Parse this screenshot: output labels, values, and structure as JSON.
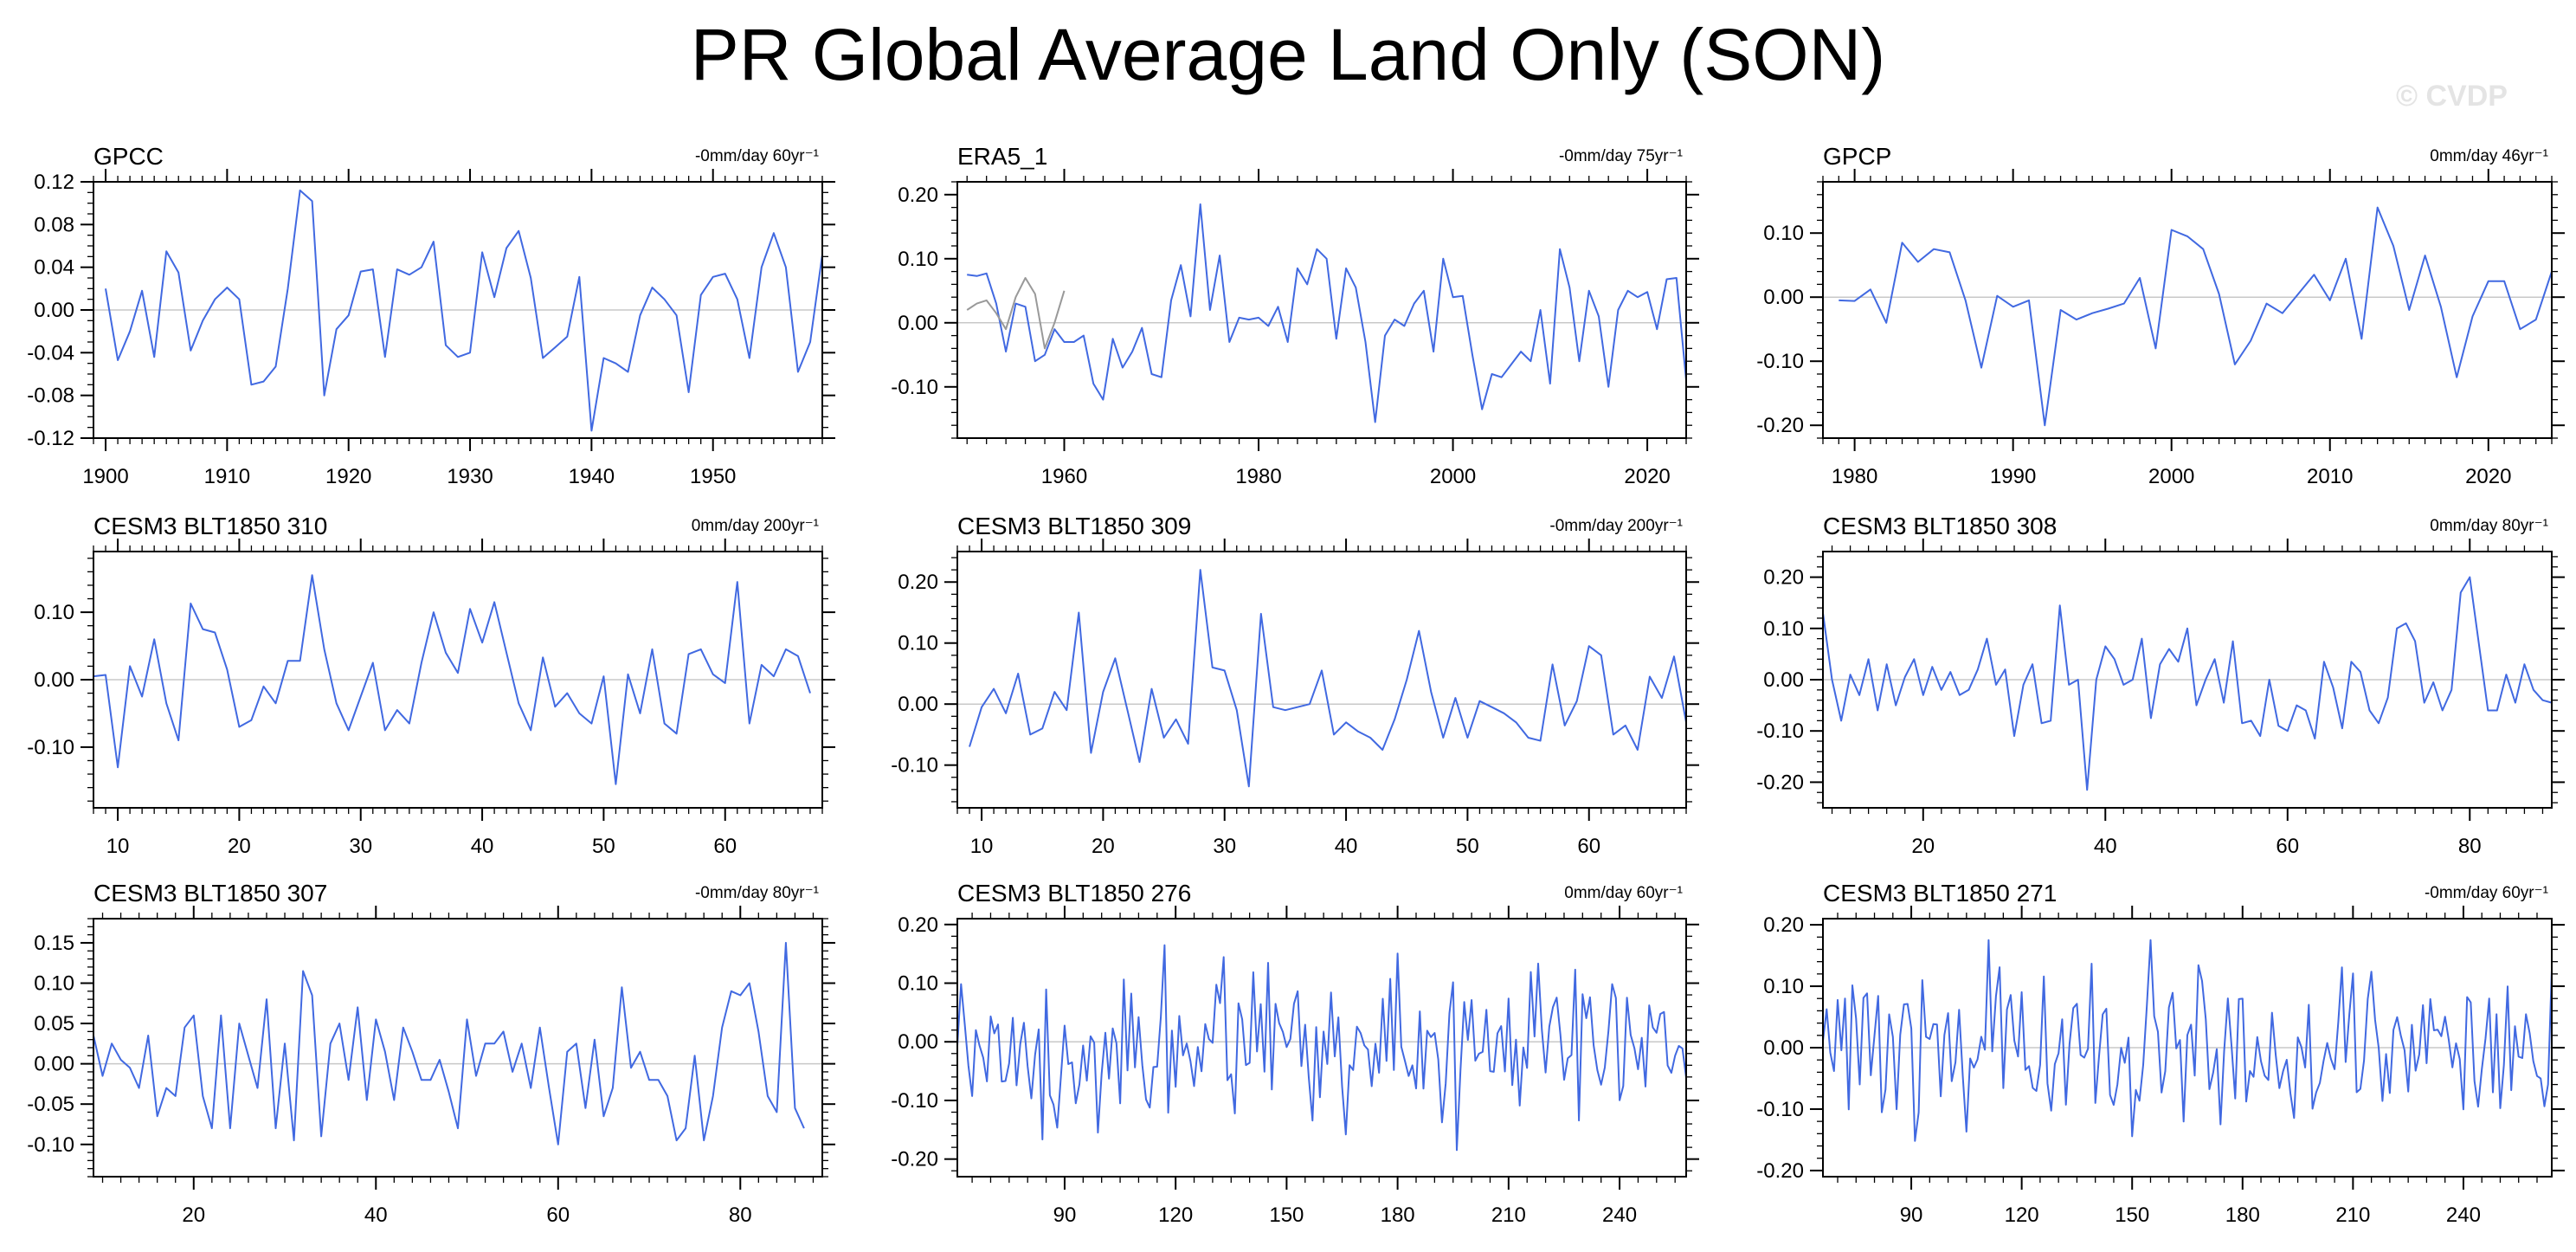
{
  "title": "PR Global Average Land Only (SON)",
  "watermark": "© CVDP",
  "colors": {
    "line": "#4169e1",
    "obs_overlay": "#999999",
    "zero_line": "#c8c8c8",
    "axis": "#000000"
  },
  "chart_data": [
    {
      "type": "line",
      "title": "GPCC",
      "subtitle": "-0mm/day 60yr⁻¹",
      "xlim": [
        1899,
        1959
      ],
      "ylim": [
        -0.12,
        0.12
      ],
      "xticks": [
        1900,
        1910,
        1920,
        1930,
        1940,
        1950
      ],
      "xtick_labels": [
        "1900",
        "1910",
        "1920",
        "1930",
        "1940",
        "1950"
      ],
      "xminor": 1,
      "yticks": [
        -0.12,
        -0.08,
        -0.04,
        0.0,
        0.04,
        0.08,
        0.12
      ],
      "ytick_labels": [
        "-0.12",
        "-0.08",
        "-0.04",
        "0.00",
        "0.04",
        "0.08",
        "0.12"
      ],
      "yminor": 0.01,
      "series": [
        {
          "x_start": 1900,
          "values": [
            0.02,
            -0.047,
            -0.02,
            0.018,
            -0.044,
            0.055,
            0.035,
            -0.038,
            -0.01,
            0.01,
            0.021,
            0.01,
            -0.07,
            -0.067,
            -0.053,
            0.02,
            0.112,
            0.102,
            -0.08,
            -0.018,
            -0.005,
            0.036,
            0.038,
            -0.044,
            0.038,
            0.033,
            0.04,
            0.064,
            -0.033,
            -0.044,
            -0.04,
            0.054,
            0.012,
            0.058,
            0.074,
            0.03,
            -0.045,
            -0.035,
            -0.025,
            0.031,
            -0.113,
            -0.045,
            -0.05,
            -0.058,
            -0.005,
            0.021,
            0.01,
            -0.005,
            -0.077,
            0.014,
            0.031,
            0.034,
            0.01,
            -0.045,
            0.04,
            0.072,
            0.04,
            -0.058,
            -0.03,
            0.052
          ]
        }
      ]
    },
    {
      "type": "line",
      "title": "ERA5_1",
      "subtitle": "-0mm/day 75yr⁻¹",
      "xlim": [
        1949,
        2024
      ],
      "ylim": [
        -0.18,
        0.22
      ],
      "xticks": [
        1960,
        1980,
        2000,
        2020
      ],
      "xtick_labels": [
        "1960",
        "1980",
        "2000",
        "2020"
      ],
      "xminor": 2,
      "yticks": [
        -0.1,
        0.0,
        0.1,
        0.2
      ],
      "ytick_labels": [
        "-0.10",
        "0.00",
        "0.10",
        "0.20"
      ],
      "yminor": 0.02,
      "series": [
        {
          "x_start": 1950,
          "values": [
            0.075,
            0.073,
            0.077,
            0.03,
            -0.045,
            0.03,
            0.025,
            -0.06,
            -0.05,
            -0.01,
            -0.03,
            -0.03,
            -0.02,
            -0.095,
            -0.12,
            -0.025,
            -0.07,
            -0.045,
            -0.008,
            -0.08,
            -0.085,
            0.035,
            0.09,
            0.01,
            0.185,
            0.02,
            0.105,
            -0.03,
            0.008,
            0.005,
            0.008,
            -0.005,
            0.025,
            -0.03,
            0.085,
            0.06,
            0.115,
            0.1,
            -0.025,
            0.085,
            0.055,
            -0.03,
            -0.155,
            -0.02,
            0.005,
            -0.005,
            0.03,
            0.05,
            -0.045,
            0.1,
            0.04,
            0.042,
            -0.05,
            -0.135,
            -0.08,
            -0.085,
            -0.065,
            -0.045,
            -0.06,
            0.02,
            -0.095,
            0.115,
            0.055,
            -0.06,
            0.05,
            0.01,
            -0.1,
            0.02,
            0.05,
            0.04,
            0.048,
            -0.01,
            0.068,
            0.07,
            -0.09,
            0.015
          ]
        },
        {
          "x_start": 1950,
          "values": [
            0.02,
            0.03,
            0.035,
            0.015,
            -0.01,
            0.04,
            0.07,
            0.045,
            -0.04,
            0.0,
            0.05
          ]
        }
      ]
    },
    {
      "type": "line",
      "title": "GPCP",
      "subtitle": "0mm/day 46yr⁻¹",
      "xlim": [
        1978,
        2024
      ],
      "ylim": [
        -0.22,
        0.18
      ],
      "xticks": [
        1980,
        1990,
        2000,
        2010,
        2020
      ],
      "xtick_labels": [
        "1980",
        "1990",
        "2000",
        "2010",
        "2020"
      ],
      "xminor": 1,
      "yticks": [
        -0.2,
        -0.1,
        0.0,
        0.1
      ],
      "ytick_labels": [
        "-0.20",
        "-0.10",
        "0.00",
        "0.10"
      ],
      "yminor": 0.02,
      "series": [
        {
          "x_start": 1979,
          "values": [
            -0.005,
            -0.006,
            0.012,
            -0.04,
            0.085,
            0.055,
            0.075,
            0.07,
            -0.005,
            -0.11,
            0.002,
            -0.015,
            -0.005,
            -0.2,
            -0.02,
            -0.035,
            -0.025,
            -0.018,
            -0.01,
            0.03,
            -0.08,
            0.105,
            0.095,
            0.075,
            0.005,
            -0.105,
            -0.068,
            -0.01,
            -0.025,
            0.005,
            0.035,
            -0.005,
            0.06,
            -0.065,
            0.14,
            0.08,
            -0.02,
            0.065,
            -0.015,
            -0.125,
            -0.03,
            0.025,
            0.025,
            -0.05,
            -0.035,
            0.04,
            0.035,
            -0.075,
            0.02
          ]
        }
      ]
    },
    {
      "type": "line",
      "title": "CESM3 BLT1850 310",
      "subtitle": "0mm/day 200yr⁻¹",
      "xlim": [
        8,
        68
      ],
      "ylim": [
        -0.19,
        0.19
      ],
      "xticks": [
        10,
        20,
        30,
        40,
        50,
        60
      ],
      "xtick_labels": [
        "10",
        "20",
        "30",
        "40",
        "50",
        "60"
      ],
      "xminor": 1,
      "yticks": [
        -0.1,
        0.0,
        0.1
      ],
      "ytick_labels": [
        "-0.10",
        "0.00",
        "0.10"
      ],
      "yminor": 0.02,
      "series": [
        {
          "x_start": 8,
          "values": [
            0.005,
            0.007,
            -0.13,
            0.02,
            -0.025,
            0.06,
            -0.035,
            -0.09,
            0.113,
            0.075,
            0.07,
            0.015,
            -0.07,
            -0.06,
            -0.01,
            -0.035,
            0.028,
            0.028,
            0.155,
            0.045,
            -0.035,
            -0.075,
            -0.025,
            0.025,
            -0.075,
            -0.045,
            -0.065,
            0.025,
            0.1,
            0.04,
            0.01,
            0.105,
            0.055,
            0.115,
            0.04,
            -0.035,
            -0.075,
            0.033,
            -0.04,
            -0.02,
            -0.05,
            -0.065,
            0.005,
            -0.155,
            0.008,
            -0.05,
            0.045,
            -0.065,
            -0.08,
            0.038,
            0.045,
            0.008,
            -0.005,
            0.145,
            -0.065,
            0.022,
            0.005,
            0.045,
            0.035,
            -0.02
          ]
        }
      ]
    },
    {
      "type": "line",
      "title": "CESM3 BLT1850 309",
      "subtitle": "-0mm/day 200yr⁻¹",
      "xlim": [
        8,
        68
      ],
      "ylim": [
        -0.17,
        0.25
      ],
      "xticks": [
        10,
        20,
        30,
        40,
        50,
        60
      ],
      "xtick_labels": [
        "10",
        "20",
        "30",
        "40",
        "50",
        "60"
      ],
      "xminor": 1,
      "yticks": [
        -0.1,
        0.0,
        0.1,
        0.2
      ],
      "ytick_labels": [
        "-0.10",
        "0.00",
        "0.10",
        "0.20"
      ],
      "yminor": 0.02,
      "series": [
        {
          "x_start": 9,
          "values": [
            -0.07,
            -0.005,
            0.025,
            -0.015,
            0.05,
            -0.05,
            -0.04,
            0.02,
            -0.01,
            0.15,
            -0.08,
            0.02,
            0.075,
            -0.01,
            -0.095,
            0.025,
            -0.055,
            -0.025,
            -0.065,
            0.22,
            0.06,
            0.055,
            -0.01,
            -0.135,
            0.148,
            -0.005,
            -0.01,
            -0.005,
            0.0,
            0.055,
            -0.05,
            -0.03,
            -0.045,
            -0.055,
            -0.075,
            -0.025,
            0.04,
            0.12,
            0.02,
            -0.055,
            0.01,
            -0.055,
            0.005,
            -0.005,
            -0.015,
            -0.03,
            -0.055,
            -0.06,
            0.065,
            -0.035,
            0.005,
            0.095,
            0.08,
            -0.05,
            -0.035,
            -0.075,
            0.045,
            0.01,
            0.078,
            -0.03
          ]
        }
      ]
    },
    {
      "type": "line",
      "title": "CESM3 BLT1850 308",
      "subtitle": "0mm/day 80yr⁻¹",
      "xlim": [
        9,
        89
      ],
      "ylim": [
        -0.25,
        0.25
      ],
      "xticks": [
        20,
        40,
        60,
        80
      ],
      "xtick_labels": [
        "20",
        "40",
        "60",
        "80"
      ],
      "xminor": 2,
      "yticks": [
        -0.2,
        -0.1,
        0.0,
        0.1,
        0.2
      ],
      "ytick_labels": [
        "-0.20",
        "-0.10",
        "0.00",
        "0.10",
        "0.20"
      ],
      "yminor": 0.02,
      "series": [
        {
          "x_start": 9,
          "values": [
            0.13,
            0.0,
            -0.08,
            0.01,
            -0.03,
            0.04,
            -0.06,
            0.03,
            -0.05,
            0.005,
            0.04,
            -0.03,
            0.025,
            -0.02,
            0.015,
            -0.03,
            -0.02,
            0.02,
            0.08,
            -0.01,
            0.02,
            -0.11,
            -0.01,
            0.03,
            -0.085,
            -0.08,
            0.145,
            -0.01,
            0.0,
            -0.215,
            0.0,
            0.065,
            0.04,
            -0.01,
            0.0,
            0.08,
            -0.075,
            0.03,
            0.06,
            0.035,
            0.1,
            -0.05,
            0.0,
            0.04,
            -0.045,
            0.075,
            -0.085,
            -0.08,
            -0.11,
            0.0,
            -0.09,
            -0.1,
            -0.05,
            -0.06,
            -0.115,
            0.035,
            -0.015,
            -0.095,
            0.035,
            0.015,
            -0.06,
            -0.085,
            -0.035,
            0.1,
            0.11,
            0.075,
            -0.045,
            -0.005,
            -0.06,
            -0.02,
            0.17,
            0.2,
            0.07,
            -0.06,
            -0.06,
            0.01,
            -0.045,
            0.03,
            -0.02,
            -0.04,
            -0.045,
            -0.075,
            -0.02
          ]
        }
      ]
    },
    {
      "type": "line",
      "title": "CESM3 BLT1850 307",
      "subtitle": "-0mm/day 80yr⁻¹",
      "xlim": [
        9,
        89
      ],
      "ylim": [
        -0.14,
        0.18
      ],
      "xticks": [
        20,
        40,
        60,
        80
      ],
      "xtick_labels": [
        "20",
        "40",
        "60",
        "80"
      ],
      "xminor": 2,
      "yticks": [
        -0.1,
        -0.05,
        0.0,
        0.05,
        0.1,
        0.15
      ],
      "ytick_labels": [
        "-0.10",
        "-0.05",
        "0.00",
        "0.05",
        "0.10",
        "0.15"
      ],
      "yminor": 0.01,
      "series": [
        {
          "x_start": 9,
          "values": [
            0.035,
            -0.015,
            0.025,
            0.005,
            -0.005,
            -0.03,
            0.035,
            -0.065,
            -0.03,
            -0.04,
            0.045,
            0.06,
            -0.04,
            -0.08,
            0.06,
            -0.08,
            0.05,
            0.01,
            -0.03,
            0.08,
            -0.08,
            0.025,
            -0.095,
            0.115,
            0.085,
            -0.09,
            0.025,
            0.05,
            -0.02,
            0.07,
            -0.045,
            0.055,
            0.015,
            -0.045,
            0.045,
            0.015,
            -0.02,
            -0.02,
            0.005,
            -0.035,
            -0.08,
            0.055,
            -0.015,
            0.025,
            0.025,
            0.04,
            -0.01,
            0.025,
            -0.03,
            0.045,
            -0.03,
            -0.1,
            0.015,
            0.025,
            -0.055,
            0.03,
            -0.065,
            -0.03,
            0.095,
            -0.005,
            0.015,
            -0.02,
            -0.02,
            -0.04,
            -0.095,
            -0.08,
            0.01,
            -0.095,
            -0.04,
            0.045,
            0.09,
            0.085,
            0.1,
            0.04,
            -0.04,
            -0.06,
            0.15,
            -0.055,
            -0.08
          ]
        }
      ]
    },
    {
      "type": "line",
      "title": "CESM3 BLT1850 276",
      "subtitle": "0mm/day 60yr⁻¹",
      "xlim": [
        61,
        258
      ],
      "ylim": [
        -0.23,
        0.21
      ],
      "xticks": [
        90,
        120,
        150,
        180,
        210,
        240
      ],
      "xtick_labels": [
        "90",
        "120",
        "150",
        "180",
        "210",
        "240"
      ],
      "xminor": 5,
      "yticks": [
        -0.2,
        -0.1,
        0.0,
        0.1,
        0.2
      ],
      "ytick_labels": [
        "-0.20",
        "-0.10",
        "0.00",
        "0.10",
        "0.20"
      ],
      "yminor": 0.02,
      "series": [
        {
          "x_start": 61,
          "x_step": 1,
          "seed": 276,
          "amplitude": 0.07,
          "min": -0.185,
          "max": 0.175,
          "synthetic": true
        }
      ]
    },
    {
      "type": "line",
      "title": "CESM3 BLT1850 271",
      "subtitle": "-0mm/day 60yr⁻¹",
      "xlim": [
        66,
        264
      ],
      "ylim": [
        -0.21,
        0.21
      ],
      "xticks": [
        90,
        120,
        150,
        180,
        210,
        240
      ],
      "xtick_labels": [
        "90",
        "120",
        "150",
        "180",
        "210",
        "240"
      ],
      "xminor": 5,
      "yticks": [
        -0.2,
        -0.1,
        0.0,
        0.1,
        0.2
      ],
      "ytick_labels": [
        "-0.20",
        "-0.10",
        "0.00",
        "0.10",
        "0.20"
      ],
      "yminor": 0.02,
      "series": [
        {
          "x_start": 66,
          "x_step": 1,
          "seed": 271,
          "amplitude": 0.07,
          "min": -0.17,
          "max": 0.175,
          "synthetic": true
        }
      ]
    }
  ]
}
